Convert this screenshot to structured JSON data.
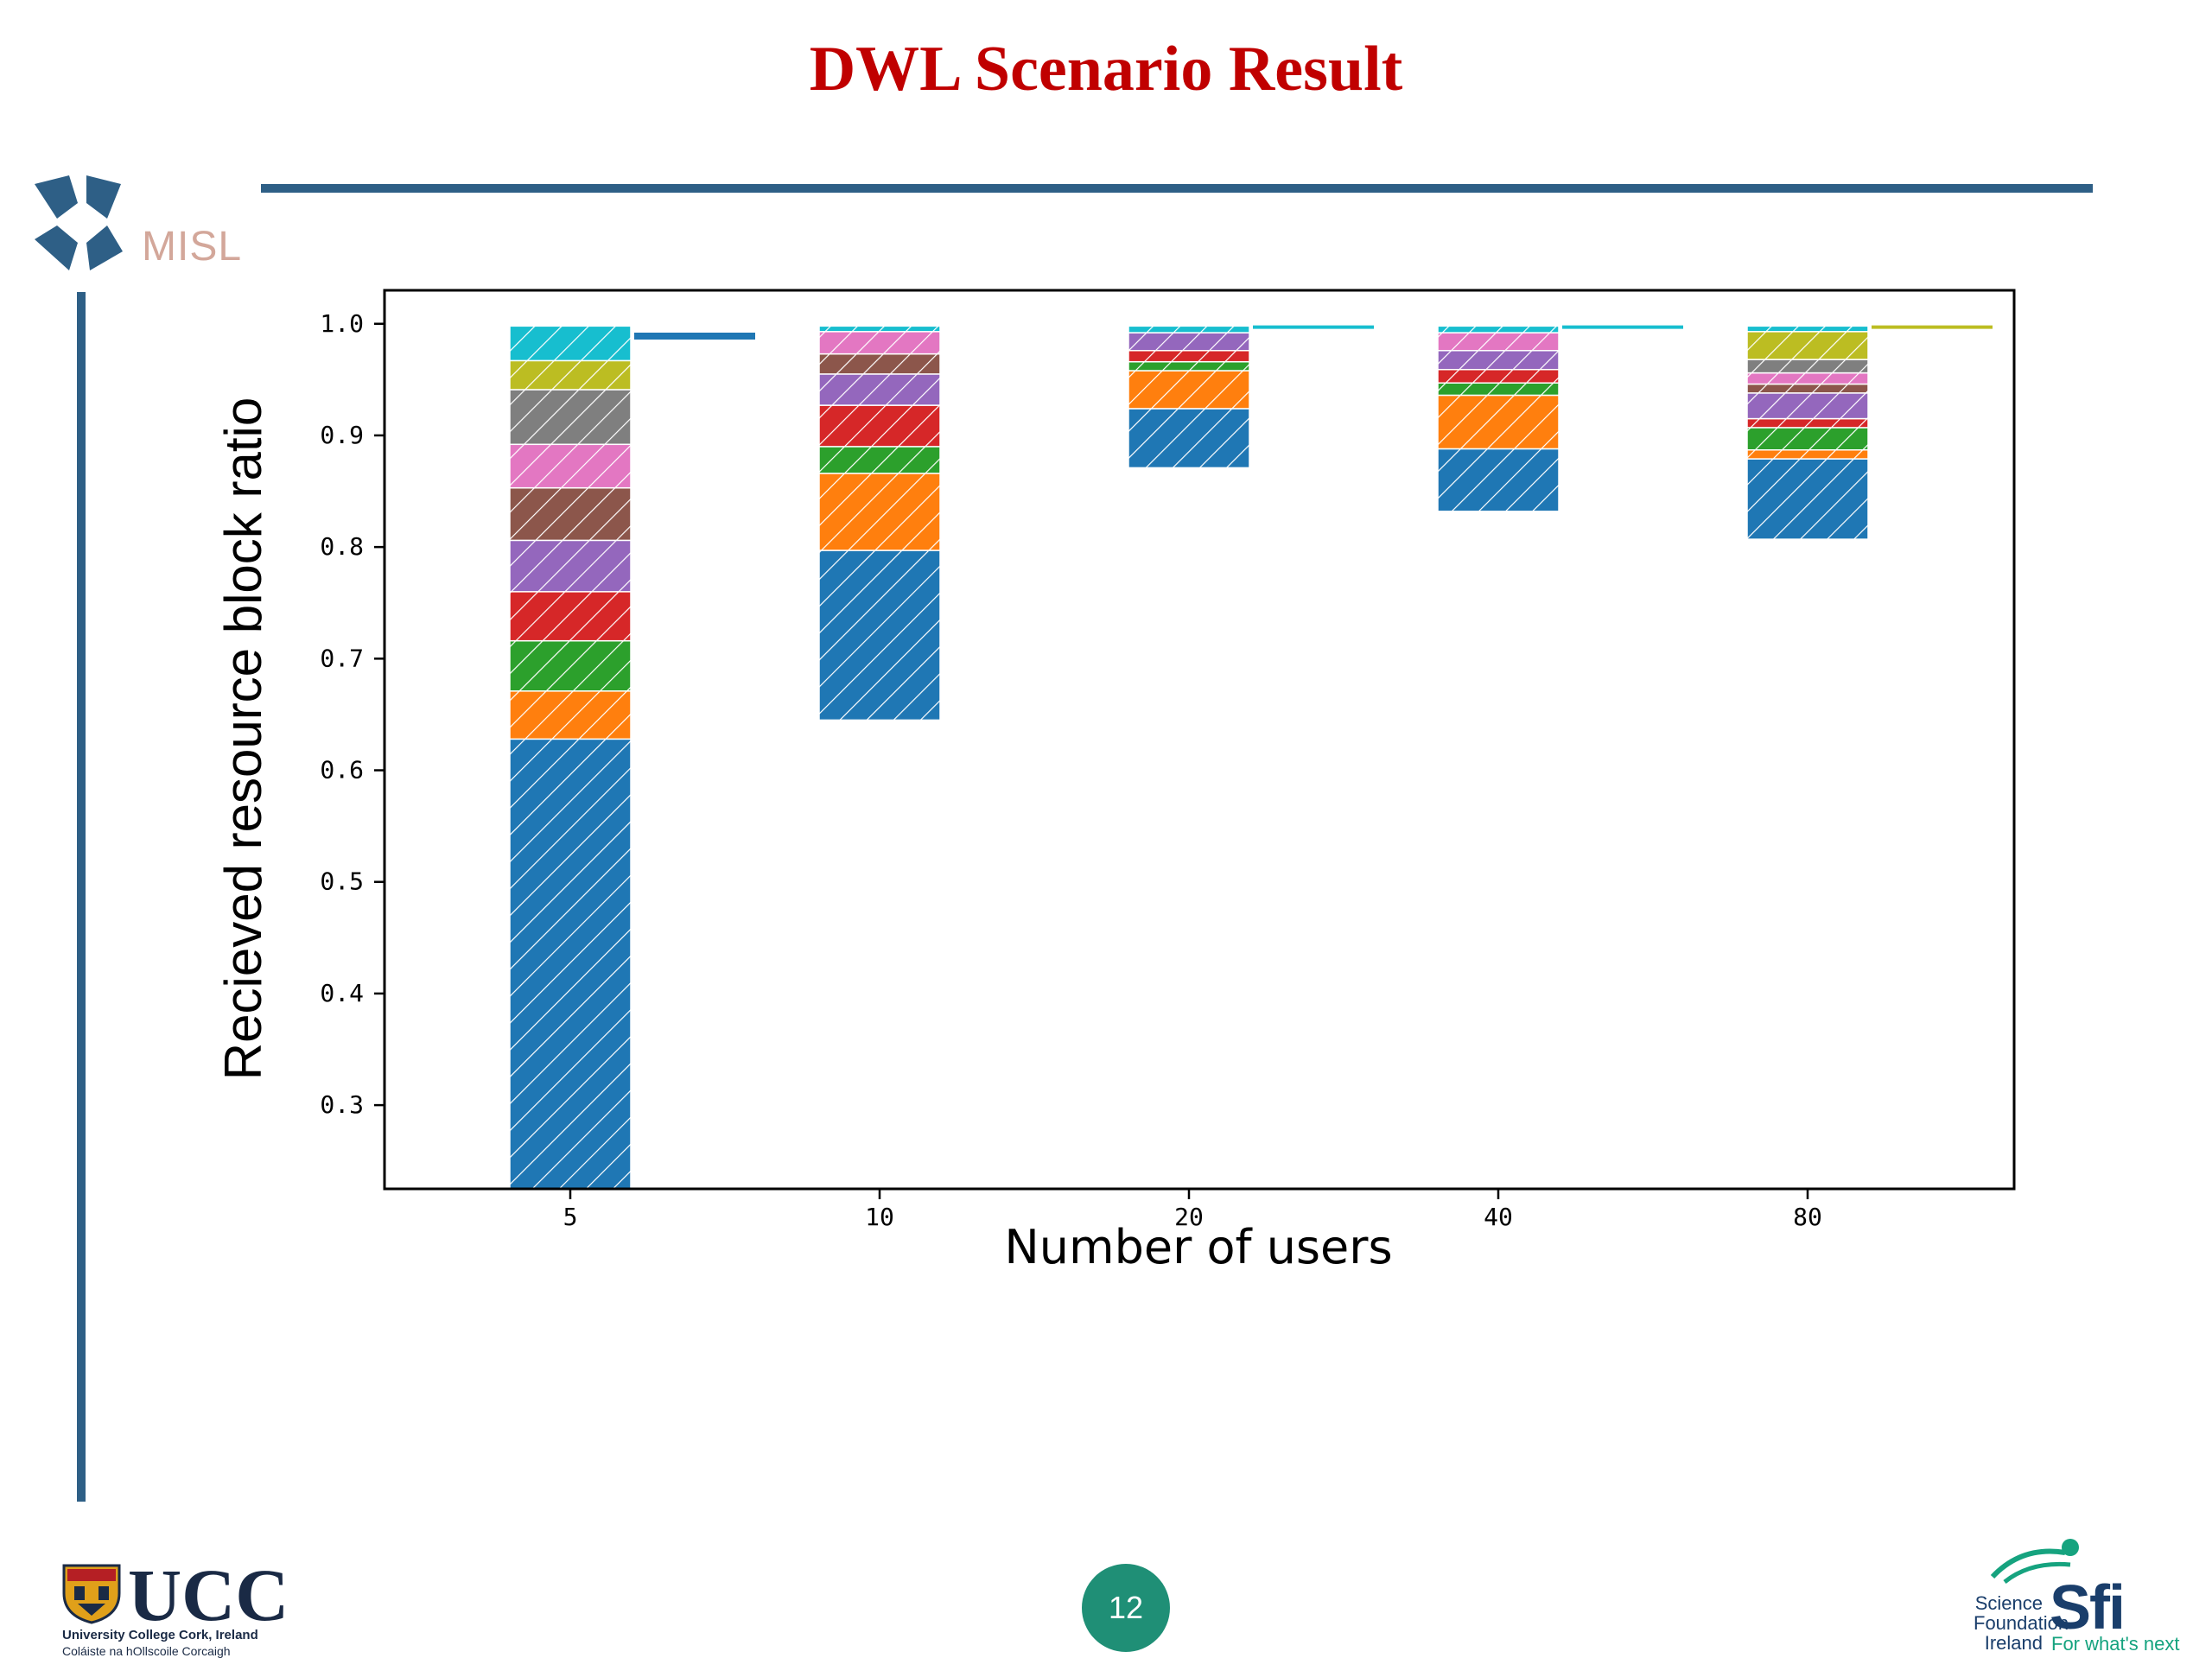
{
  "slide": {
    "title": "DWL Scenario Result",
    "page_number": "12"
  },
  "logos": {
    "misl": "MISL",
    "ucc": "UCC",
    "ucc_subtitle": "University College Cork, Ireland",
    "ucc_irish": "Coláiste na hOllscoile Corcaigh",
    "sfi_science": "Science",
    "sfi_foundation": "Foundation",
    "sfi_ireland": "Ireland",
    "sfi": "Sfi",
    "sfi_tagline": "For what's next"
  },
  "colors": {
    "title": "#c00000",
    "rule": "#2e5f86",
    "badge": "#1f8f76"
  },
  "chart_data": {
    "type": "bar",
    "stacked": true,
    "hatched": true,
    "xlabel": "Number of users",
    "ylabel": "Recieved resource block ratio",
    "categories": [
      "5",
      "10",
      "20",
      "40",
      "80"
    ],
    "ylim": [
      0.225,
      1.03
    ],
    "yticks": [
      "0.3",
      "0.4",
      "0.5",
      "0.6",
      "0.7",
      "0.8",
      "0.9",
      "1.0"
    ],
    "grid": false,
    "legend": "none",
    "palette": [
      "#1f77b4",
      "#ff7f0e",
      "#2ca02c",
      "#d62728",
      "#9467bd",
      "#8c564b",
      "#e377c2",
      "#7f7f7f",
      "#bcbd22",
      "#17becf"
    ],
    "stacks": [
      {
        "category": "5",
        "base": 0.225,
        "segments": [
          0.628,
          0.671,
          0.716,
          0.76,
          0.806,
          0.853,
          0.892,
          0.941,
          0.967,
          0.998
        ],
        "colors": [
          0,
          1,
          2,
          3,
          4,
          5,
          6,
          7,
          8,
          9
        ],
        "dash": 0.989,
        "dash_color": 0
      },
      {
        "category": "10",
        "base": 0.645,
        "segments": [
          0.797,
          0.866,
          0.89,
          0.927,
          0.955,
          0.973,
          0.993,
          0.998
        ],
        "colors": [
          0,
          1,
          2,
          3,
          4,
          5,
          6,
          9
        ],
        "dash": null,
        "dash_color": null
      },
      {
        "category": "20",
        "base": 0.871,
        "segments": [
          0.924,
          0.958,
          0.966,
          0.976,
          0.992,
          0.998
        ],
        "colors": [
          0,
          1,
          2,
          3,
          4,
          9
        ],
        "dash": 0.997,
        "dash_color": 9
      },
      {
        "category": "40",
        "base": 0.832,
        "segments": [
          0.888,
          0.936,
          0.947,
          0.959,
          0.976,
          0.992,
          0.998
        ],
        "colors": [
          0,
          1,
          2,
          3,
          4,
          6,
          9
        ],
        "dash": 0.997,
        "dash_color": 9
      },
      {
        "category": "80",
        "base": 0.807,
        "segments": [
          0.879,
          0.887,
          0.907,
          0.915,
          0.938,
          0.946,
          0.956,
          0.968,
          0.993,
          0.998
        ],
        "colors": [
          0,
          1,
          2,
          3,
          4,
          5,
          6,
          7,
          8,
          9
        ],
        "dash": 0.997,
        "dash_color": 8
      }
    ]
  }
}
